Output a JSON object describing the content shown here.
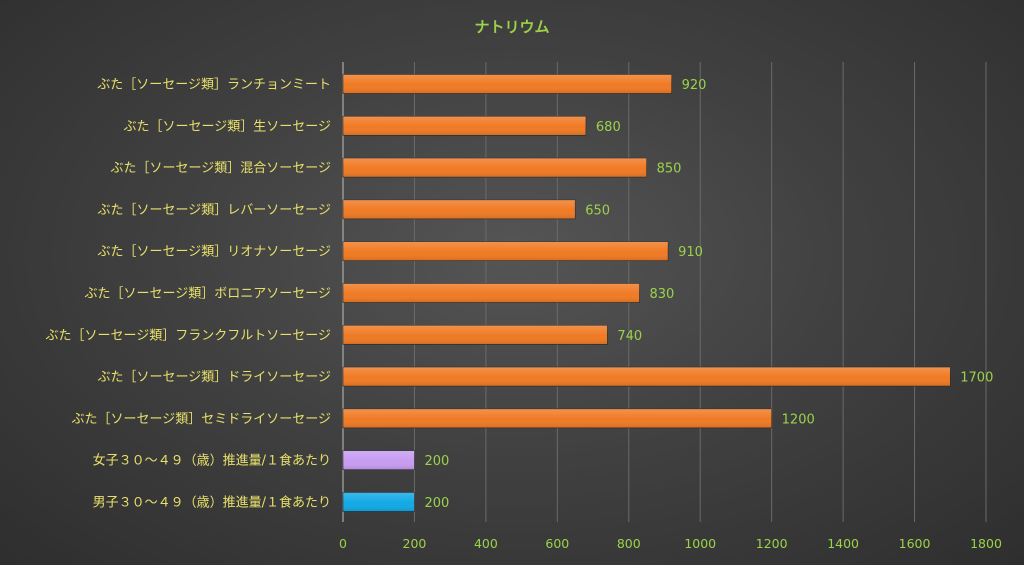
{
  "chart_data": {
    "type": "bar",
    "orientation": "horizontal",
    "title": "ナトリウム",
    "categories": [
      "ぶた［ソーセージ類］ランチョンミート",
      "ぶた［ソーセージ類］生ソーセージ",
      "ぶた［ソーセージ類］混合ソーセージ",
      "ぶた［ソーセージ類］レバーソーセージ",
      "ぶた［ソーセージ類］リオナソーセージ",
      "ぶた［ソーセージ類］ボロニアソーセージ",
      "ぶた［ソーセージ類］フランクフルトソーセージ",
      "ぶた［ソーセージ類］ドライソーセージ",
      "ぶた［ソーセージ類］セミドライソーセージ",
      "女子３０～４９（歳）推進量/１食あたり",
      "男子３０～４９（歳）推進量/１食あたり"
    ],
    "values": [
      920,
      680,
      850,
      650,
      910,
      830,
      740,
      1700,
      1200,
      200,
      200
    ],
    "value_labels": [
      "920",
      "680",
      "850",
      "650",
      "910",
      "830",
      "740",
      "1700",
      "1200",
      "200",
      "200"
    ],
    "bar_colors": [
      "#f07a24",
      "#f07a24",
      "#f07a24",
      "#f07a24",
      "#f07a24",
      "#f07a24",
      "#f07a24",
      "#f07a24",
      "#f07a24",
      "#c79cf2",
      "#12a9e6"
    ],
    "xlim": [
      0,
      1800
    ],
    "xticks": [
      0,
      200,
      400,
      600,
      800,
      1000,
      1200,
      1400,
      1600,
      1800
    ],
    "xtick_labels": [
      "0",
      "200",
      "400",
      "600",
      "800",
      "1000",
      "1200",
      "1400",
      "1600",
      "1800"
    ],
    "grid": true,
    "legend": "none",
    "colors": {
      "title": "#9bd24a",
      "category_labels": "#e8e06a",
      "value_labels": "#9bd24a",
      "tick_labels": "#9bd24a",
      "grid": "#6a6a6a"
    }
  }
}
